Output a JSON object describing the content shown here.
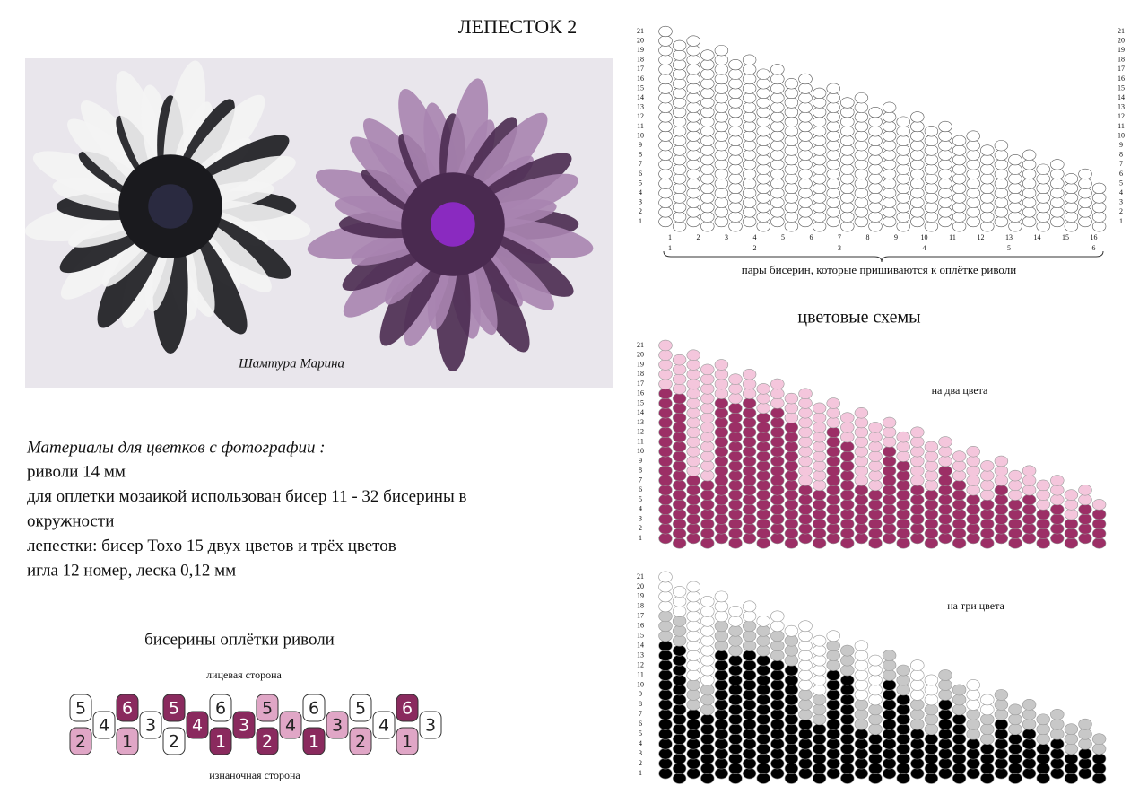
{
  "header": {
    "title": "ЛЕПЕСТОК 2"
  },
  "photo": {
    "signature": "Шамтура Марина"
  },
  "materials": {
    "heading": "Материалы для цветков с фотографии :",
    "lines": [
      "риволи 14 мм",
      "для оплетки мозаикой использован бисер 11 - 32 бисерины  в",
      "окружности",
      "лепестки: бисер Toxo 15 двух цветов и трёх цветов",
      "игла 12 номер, леска 0,12 мм"
    ]
  },
  "strip": {
    "title": "бисерины оплётки риволи",
    "top_label": "лицевая сторона",
    "bottom_label": "изнаночная сторона",
    "beads": [
      {
        "label": 5,
        "color": "#ffffff"
      },
      {
        "label": 2,
        "color": "#e0a6c6"
      },
      {
        "label": 4,
        "color": "#ffffff"
      },
      {
        "label": 6,
        "color": "#8a2a5e"
      },
      {
        "label": 1,
        "color": "#e0a6c6"
      },
      {
        "label": 3,
        "color": "#ffffff"
      },
      {
        "label": 5,
        "color": "#8a2a5e"
      },
      {
        "label": 2,
        "color": "#ffffff"
      },
      {
        "label": 4,
        "color": "#8a2a5e"
      },
      {
        "label": 6,
        "color": "#ffffff"
      },
      {
        "label": 1,
        "color": "#8a2a5e"
      },
      {
        "label": 3,
        "color": "#8a2a5e"
      },
      {
        "label": 5,
        "color": "#e0a6c6"
      },
      {
        "label": 2,
        "color": "#8a2a5e"
      },
      {
        "label": 4,
        "color": "#e0a6c6"
      },
      {
        "label": 6,
        "color": "#ffffff"
      },
      {
        "label": 1,
        "color": "#8a2a5e"
      },
      {
        "label": 3,
        "color": "#e0a6c6"
      },
      {
        "label": 5,
        "color": "#ffffff"
      },
      {
        "label": 2,
        "color": "#e0a6c6"
      },
      {
        "label": 4,
        "color": "#ffffff"
      },
      {
        "label": 6,
        "color": "#8a2a5e"
      },
      {
        "label": 1,
        "color": "#e0a6c6"
      },
      {
        "label": 3,
        "color": "#ffffff"
      }
    ]
  },
  "scheme": {
    "row_labels": [
      1,
      2,
      3,
      4,
      5,
      6,
      7,
      8,
      9,
      10,
      11,
      12,
      13,
      14,
      15,
      16,
      17,
      18,
      19,
      20,
      21
    ],
    "column_labels": [
      1,
      2,
      3,
      4,
      5,
      6,
      7,
      8,
      9,
      10,
      11,
      12,
      13,
      14,
      15,
      16
    ],
    "pair_labels": [
      1,
      2,
      3,
      4,
      5,
      6
    ],
    "caption": "пары бисерин, которые пришиваются к оплётке риволи"
  },
  "color_schemes": {
    "title": "цветовые схемы",
    "two_color": {
      "label": "на два цвета",
      "colors": [
        "#9c2f66",
        "#f4c6dc"
      ]
    },
    "three_color": {
      "label": "на три цвета",
      "colors": [
        "#000000",
        "#c8c8c8",
        "#ffffff"
      ]
    }
  }
}
